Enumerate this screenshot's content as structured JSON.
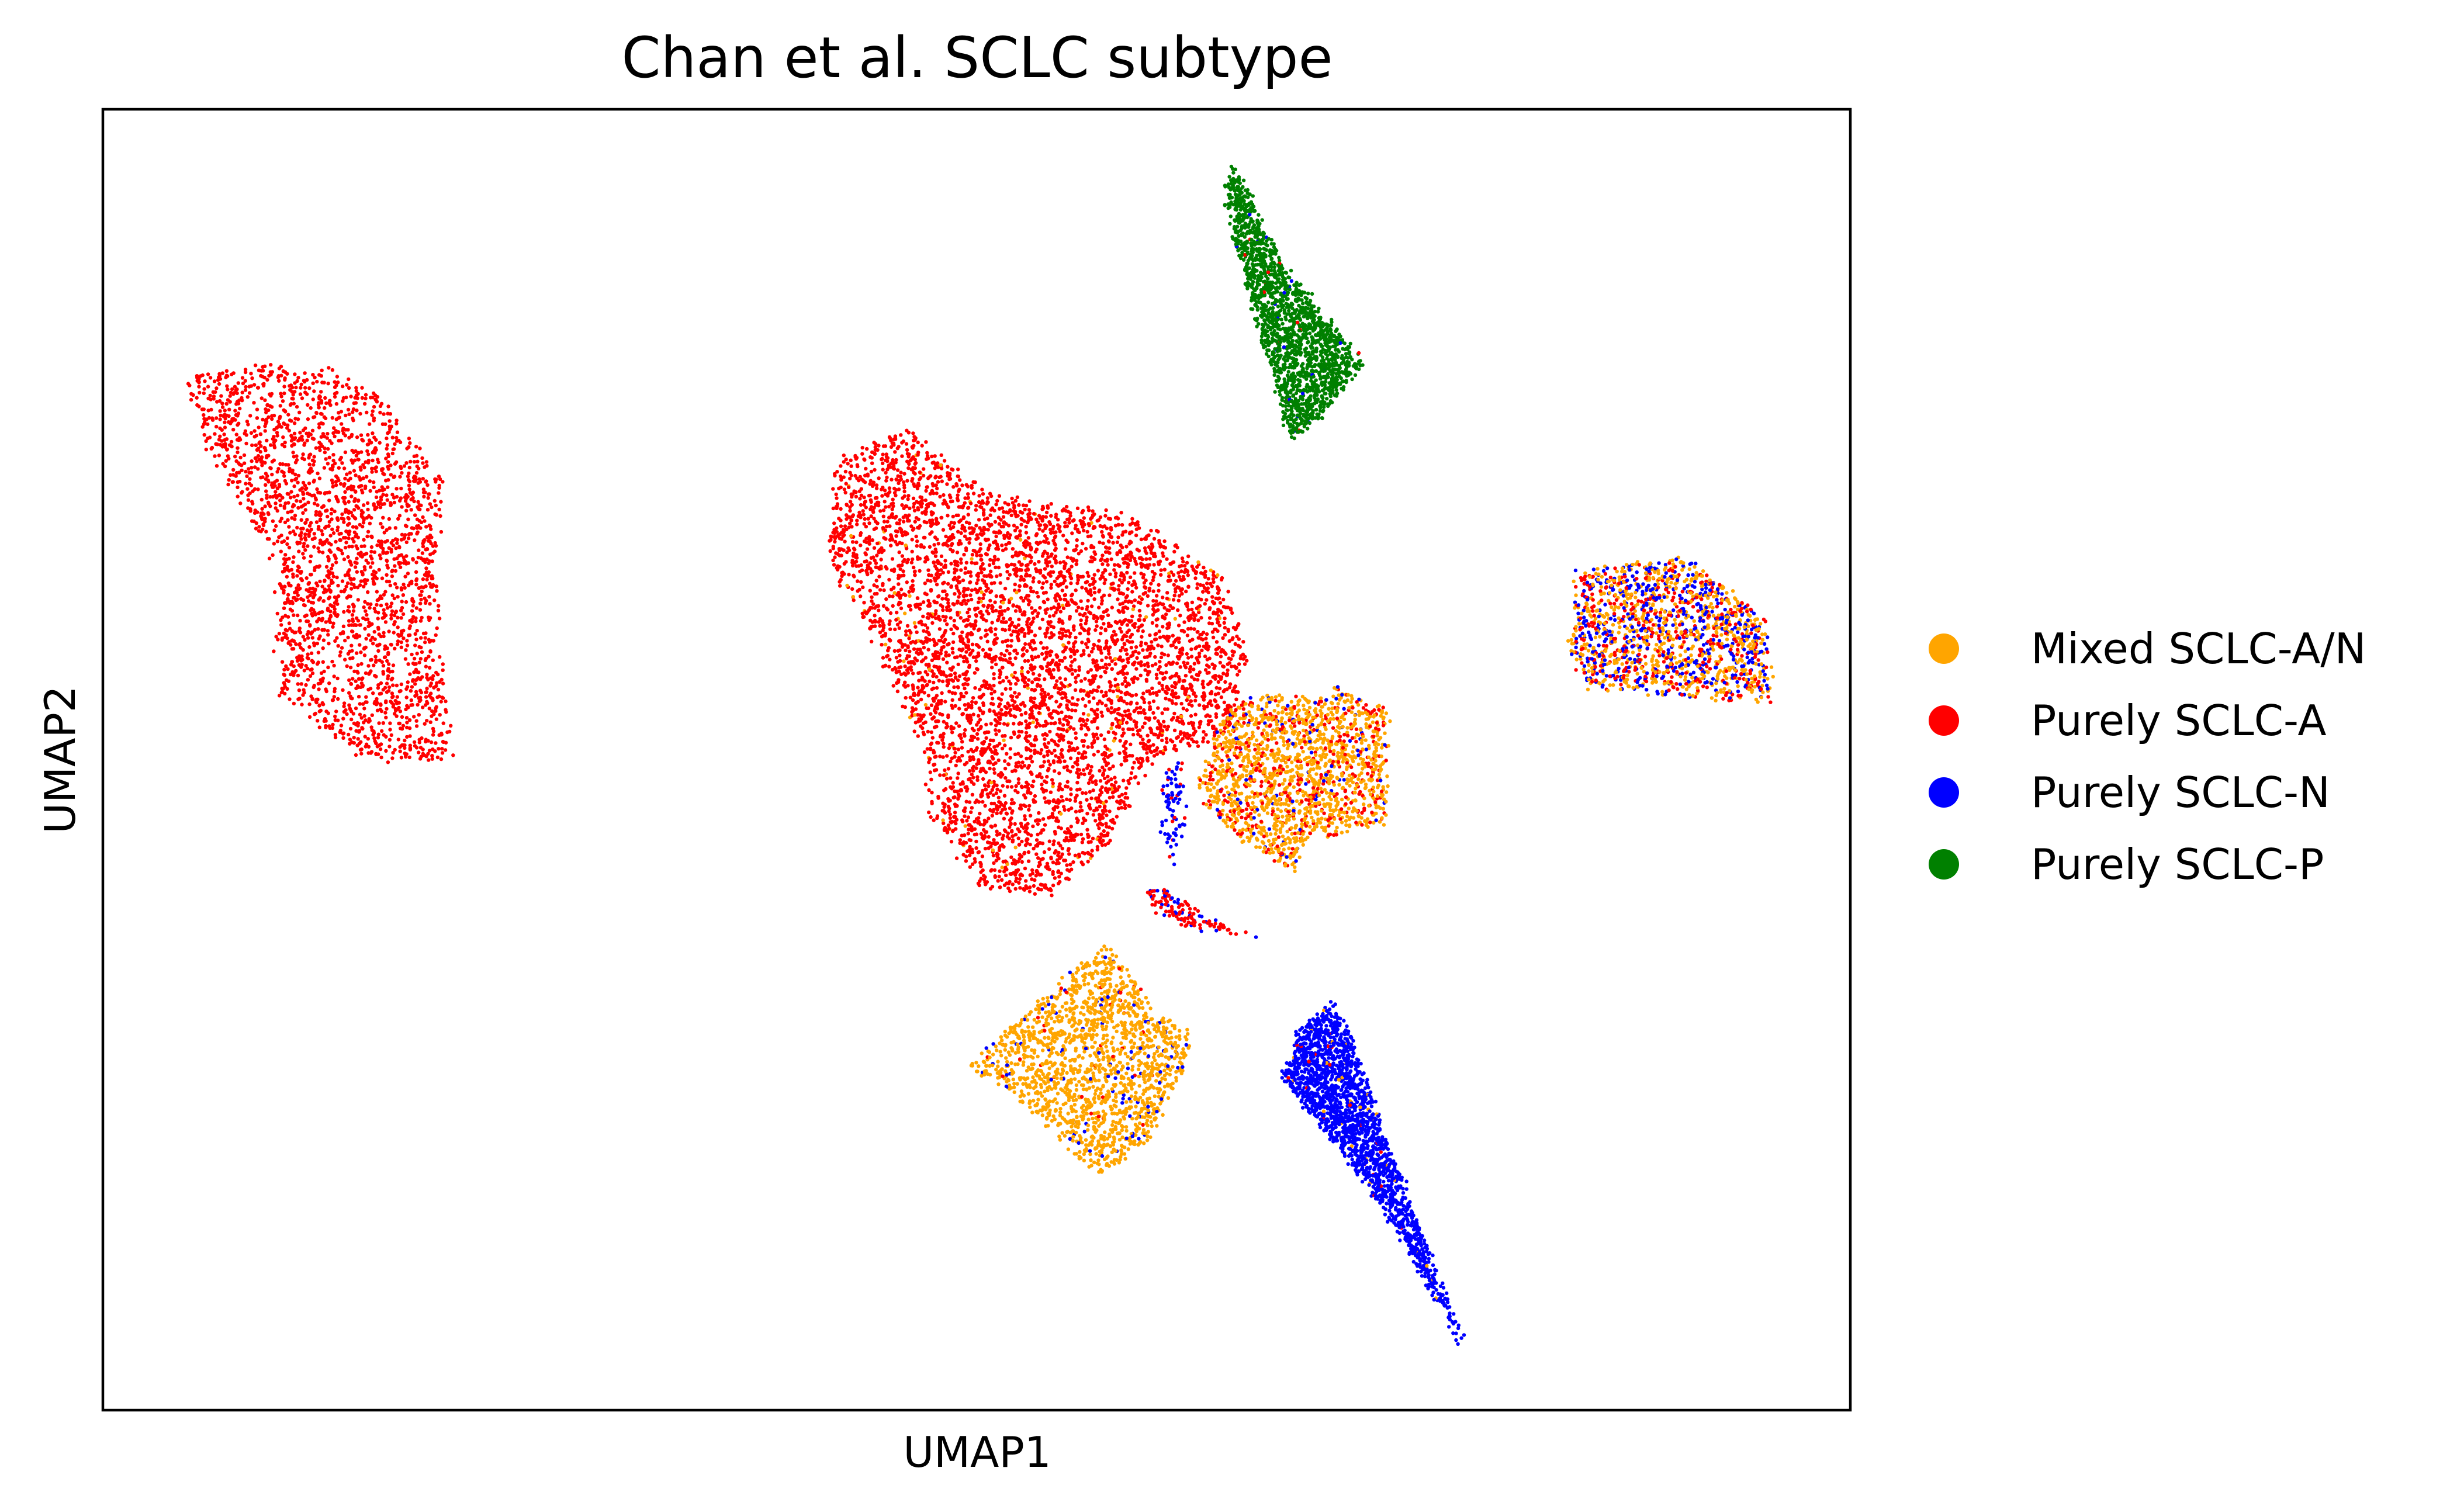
{
  "chart_data": {
    "type": "scatter",
    "title": "Chan et al. SCLC subtype",
    "xlabel": "UMAP1",
    "ylabel": "UMAP2",
    "xlim": [
      0,
      100
    ],
    "ylim": [
      0,
      100
    ],
    "grid": false,
    "ticks_shown": false,
    "legend": {
      "placement": "right-outside",
      "entries": [
        {
          "name": "Mixed SCLC-A/N",
          "color": "#FFA500"
        },
        {
          "name": "Purely SCLC-A",
          "color": "#FF0000"
        },
        {
          "name": "Purely SCLC-N",
          "color": "#0000FF"
        },
        {
          "name": "Purely SCLC-P",
          "color": "#008000"
        }
      ]
    },
    "clusters": [
      {
        "id": "left-A",
        "polygon": [
          [
            4.5,
            79.8
          ],
          [
            9.5,
            80.2
          ],
          [
            14.5,
            79.8
          ],
          [
            19.5,
            71.5
          ],
          [
            19.0,
            63.0
          ],
          [
            20.0,
            50.0
          ],
          [
            15.0,
            50.0
          ],
          [
            10.0,
            55.0
          ],
          [
            10.0,
            65.0
          ],
          [
            6.0,
            74.0
          ]
        ],
        "mix": {
          "Purely SCLC-A": 1.0
        },
        "count": 2500,
        "edge": 0.5
      },
      {
        "id": "center-A",
        "polygon": [
          [
            42.0,
            73.0
          ],
          [
            46.0,
            75.5
          ],
          [
            49.0,
            72.0
          ],
          [
            52.0,
            70.0
          ],
          [
            58.5,
            69.0
          ],
          [
            64.0,
            64.0
          ],
          [
            65.5,
            58.0
          ],
          [
            64.5,
            52.0
          ],
          [
            60.0,
            50.0
          ],
          [
            57.5,
            43.5
          ],
          [
            54.0,
            39.5
          ],
          [
            50.0,
            40.5
          ],
          [
            47.5,
            45.0
          ],
          [
            47.0,
            51.0
          ],
          [
            43.5,
            61.0
          ],
          [
            41.5,
            64.5
          ]
        ],
        "mix": {
          "Purely SCLC-A": 0.98,
          "Mixed SCLC-A/N": 0.02
        },
        "count": 5200,
        "edge": 0.5
      },
      {
        "id": "center-orange",
        "polygon": [
          [
            64.5,
            54.5
          ],
          [
            70.5,
            55.5
          ],
          [
            73.5,
            54.0
          ],
          [
            73.5,
            45.0
          ],
          [
            69.0,
            44.0
          ],
          [
            68.0,
            41.5
          ],
          [
            65.0,
            44.0
          ],
          [
            62.5,
            47.5
          ]
        ],
        "mix": {
          "Mixed SCLC-A/N": 0.72,
          "Purely SCLC-A": 0.24,
          "Purely SCLC-N": 0.04
        },
        "count": 1700,
        "edge": 0.5
      },
      {
        "id": "right-mixed",
        "polygon": [
          [
            84.5,
            64.5
          ],
          [
            90.5,
            65.5
          ],
          [
            95.0,
            61.0
          ],
          [
            95.5,
            54.5
          ],
          [
            85.0,
            55.5
          ],
          [
            84.0,
            58.5
          ]
        ],
        "mix": {
          "Mixed SCLC-A/N": 0.45,
          "Purely SCLC-N": 0.3,
          "Purely SCLC-A": 0.25
        },
        "count": 1600,
        "edge": 0.6
      },
      {
        "id": "top-P",
        "polygon": [
          [
            64.8,
            95.5
          ],
          [
            67.5,
            88.0
          ],
          [
            71.5,
            81.5
          ],
          [
            72.0,
            80.5
          ],
          [
            69.5,
            76.0
          ],
          [
            68.0,
            74.5
          ],
          [
            67.0,
            79.5
          ],
          [
            65.0,
            89.0
          ],
          [
            64.2,
            94.0
          ]
        ],
        "mix": {
          "Purely SCLC-P": 0.98,
          "Purely SCLC-N": 0.01,
          "Purely SCLC-A": 0.01
        },
        "count": 1800,
        "edge": 0.5
      },
      {
        "id": "bottom-orange",
        "polygon": [
          [
            57.5,
            36.0
          ],
          [
            60.0,
            31.0
          ],
          [
            62.5,
            28.5
          ],
          [
            60.0,
            21.0
          ],
          [
            57.0,
            18.0
          ],
          [
            52.0,
            24.5
          ],
          [
            49.5,
            26.5
          ]
        ],
        "mix": {
          "Mixed SCLC-A/N": 0.93,
          "Purely SCLC-N": 0.05,
          "Purely SCLC-A": 0.02
        },
        "count": 1700,
        "edge": 0.5
      },
      {
        "id": "bottom-N",
        "polygon": [
          [
            70.5,
            31.5
          ],
          [
            68.5,
            29.0
          ],
          [
            67.5,
            25.5
          ],
          [
            70.0,
            21.5
          ],
          [
            74.0,
            14.0
          ],
          [
            78.0,
            4.5
          ],
          [
            77.0,
            8.0
          ],
          [
            74.5,
            17.0
          ],
          [
            72.5,
            24.0
          ],
          [
            71.5,
            28.0
          ]
        ],
        "mix": {
          "Purely SCLC-N": 0.97,
          "Mixed SCLC-A/N": 0.02,
          "Purely SCLC-A": 0.01
        },
        "count": 1900,
        "edge": 0.5
      },
      {
        "id": "bridge-N",
        "polygon": [
          [
            60.8,
            49.5
          ],
          [
            61.8,
            50.0
          ],
          [
            61.8,
            44.5
          ],
          [
            61.2,
            42.0
          ],
          [
            60.6,
            44.5
          ]
        ],
        "mix": {
          "Purely SCLC-N": 0.85,
          "Purely SCLC-A": 0.15
        },
        "count": 80,
        "edge": 0.5
      },
      {
        "id": "bridge-A",
        "polygon": [
          [
            59.5,
            40.0
          ],
          [
            61.0,
            40.0
          ],
          [
            63.5,
            37.5
          ],
          [
            66.0,
            36.5
          ],
          [
            62.0,
            37.2
          ],
          [
            60.5,
            38.0
          ]
        ],
        "mix": {
          "Purely SCLC-A": 0.75,
          "Purely SCLC-N": 0.25
        },
        "count": 120,
        "edge": 0.5
      }
    ]
  }
}
